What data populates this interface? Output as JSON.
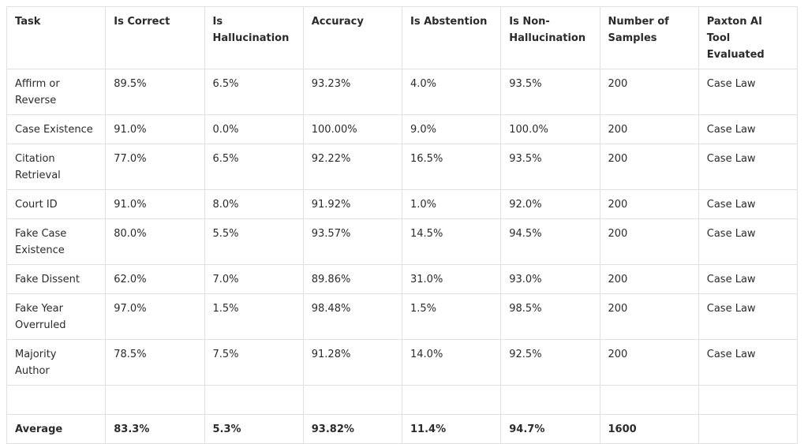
{
  "table": {
    "header": [
      "Task",
      "Is Correct",
      "Is Hallucination",
      "Accuracy",
      "Is Abstention",
      "Is Non-Hallucination",
      "Number of Samples",
      "Paxton AI Tool Evaluated"
    ],
    "rows": [
      [
        "Affirm or Reverse",
        "89.5%",
        "6.5%",
        "93.23%",
        "4.0%",
        "93.5%",
        "200",
        "Case Law"
      ],
      [
        "Case Existence",
        "91.0%",
        "0.0%",
        "100.00%",
        "9.0%",
        "100.0%",
        "200",
        "Case Law"
      ],
      [
        "Citation Retrieval",
        "77.0%",
        "6.5%",
        "92.22%",
        "16.5%",
        "93.5%",
        "200",
        "Case Law"
      ],
      [
        "Court ID",
        "91.0%",
        "8.0%",
        "91.92%",
        "1.0%",
        "92.0%",
        "200",
        "Case Law"
      ],
      [
        "Fake Case Existence",
        "80.0%",
        "5.5%",
        "93.57%",
        "14.5%",
        "94.5%",
        "200",
        "Case Law"
      ],
      [
        "Fake Dissent",
        "62.0%",
        "7.0%",
        "89.86%",
        "31.0%",
        "93.0%",
        "200",
        "Case Law"
      ],
      [
        "Fake Year Overruled",
        "97.0%",
        "1.5%",
        "98.48%",
        "1.5%",
        "98.5%",
        "200",
        "Case Law"
      ],
      [
        "Majority Author",
        "78.5%",
        "7.5%",
        "91.28%",
        "14.0%",
        "92.5%",
        "200",
        "Case Law"
      ]
    ],
    "average": [
      "Average",
      "83.3%",
      "5.3%",
      "93.82%",
      "11.4%",
      "94.7%",
      "1600"
    ]
  }
}
